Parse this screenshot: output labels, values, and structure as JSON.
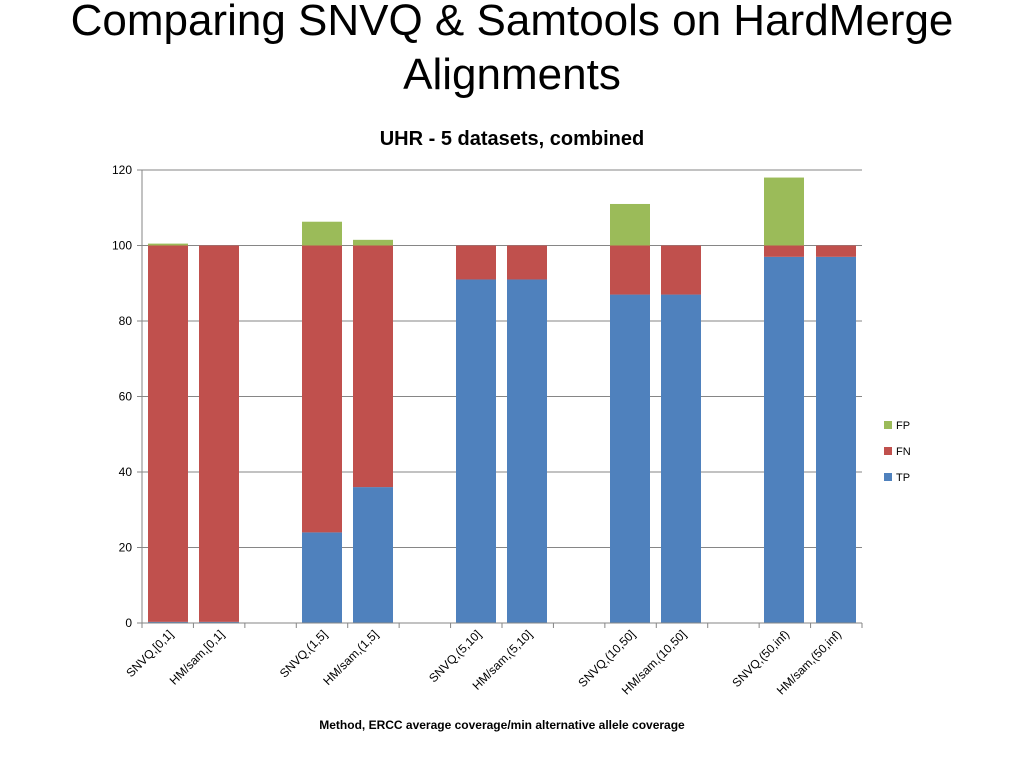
{
  "slide": {
    "title": "Comparing SNVQ & Samtools on HardMerge Alignments"
  },
  "chart_data": {
    "type": "bar",
    "stacked": true,
    "title": "UHR - 5 datasets, combined",
    "xlabel": "Method, ERCC average coverage/min alternative allele coverage",
    "ylabel": "",
    "ylim": [
      0,
      120
    ],
    "yticks": [
      0,
      20,
      40,
      60,
      80,
      100,
      120
    ],
    "grid": true,
    "legend_position": "right",
    "categories": [
      "SNVQ,[0,1]",
      "HM/sam,[0,1]",
      "SNVQ,(1,5]",
      "HM/sam,(1,5]",
      "SNVQ,(5,10]",
      "HM/sam,(5,10]",
      "SNVQ,(10,50]",
      "HM/sam,(10,50]",
      "SNVQ,(50,inf)",
      "HM/sam,(50,inf)"
    ],
    "series": [
      {
        "name": "TP",
        "color": "#4F81BD",
        "values": [
          0.3,
          0.3,
          24,
          36,
          91,
          91,
          87,
          87,
          97,
          97
        ]
      },
      {
        "name": "FN",
        "color": "#C0504D",
        "values": [
          99.7,
          99.7,
          76,
          64,
          9,
          9,
          13,
          13,
          3,
          3
        ]
      },
      {
        "name": "FP",
        "color": "#9BBB59",
        "values": [
          0.5,
          0,
          6.3,
          1.5,
          0,
          0,
          11,
          0,
          18,
          0
        ]
      }
    ],
    "legend_order": [
      "FP",
      "FN",
      "TP"
    ]
  }
}
